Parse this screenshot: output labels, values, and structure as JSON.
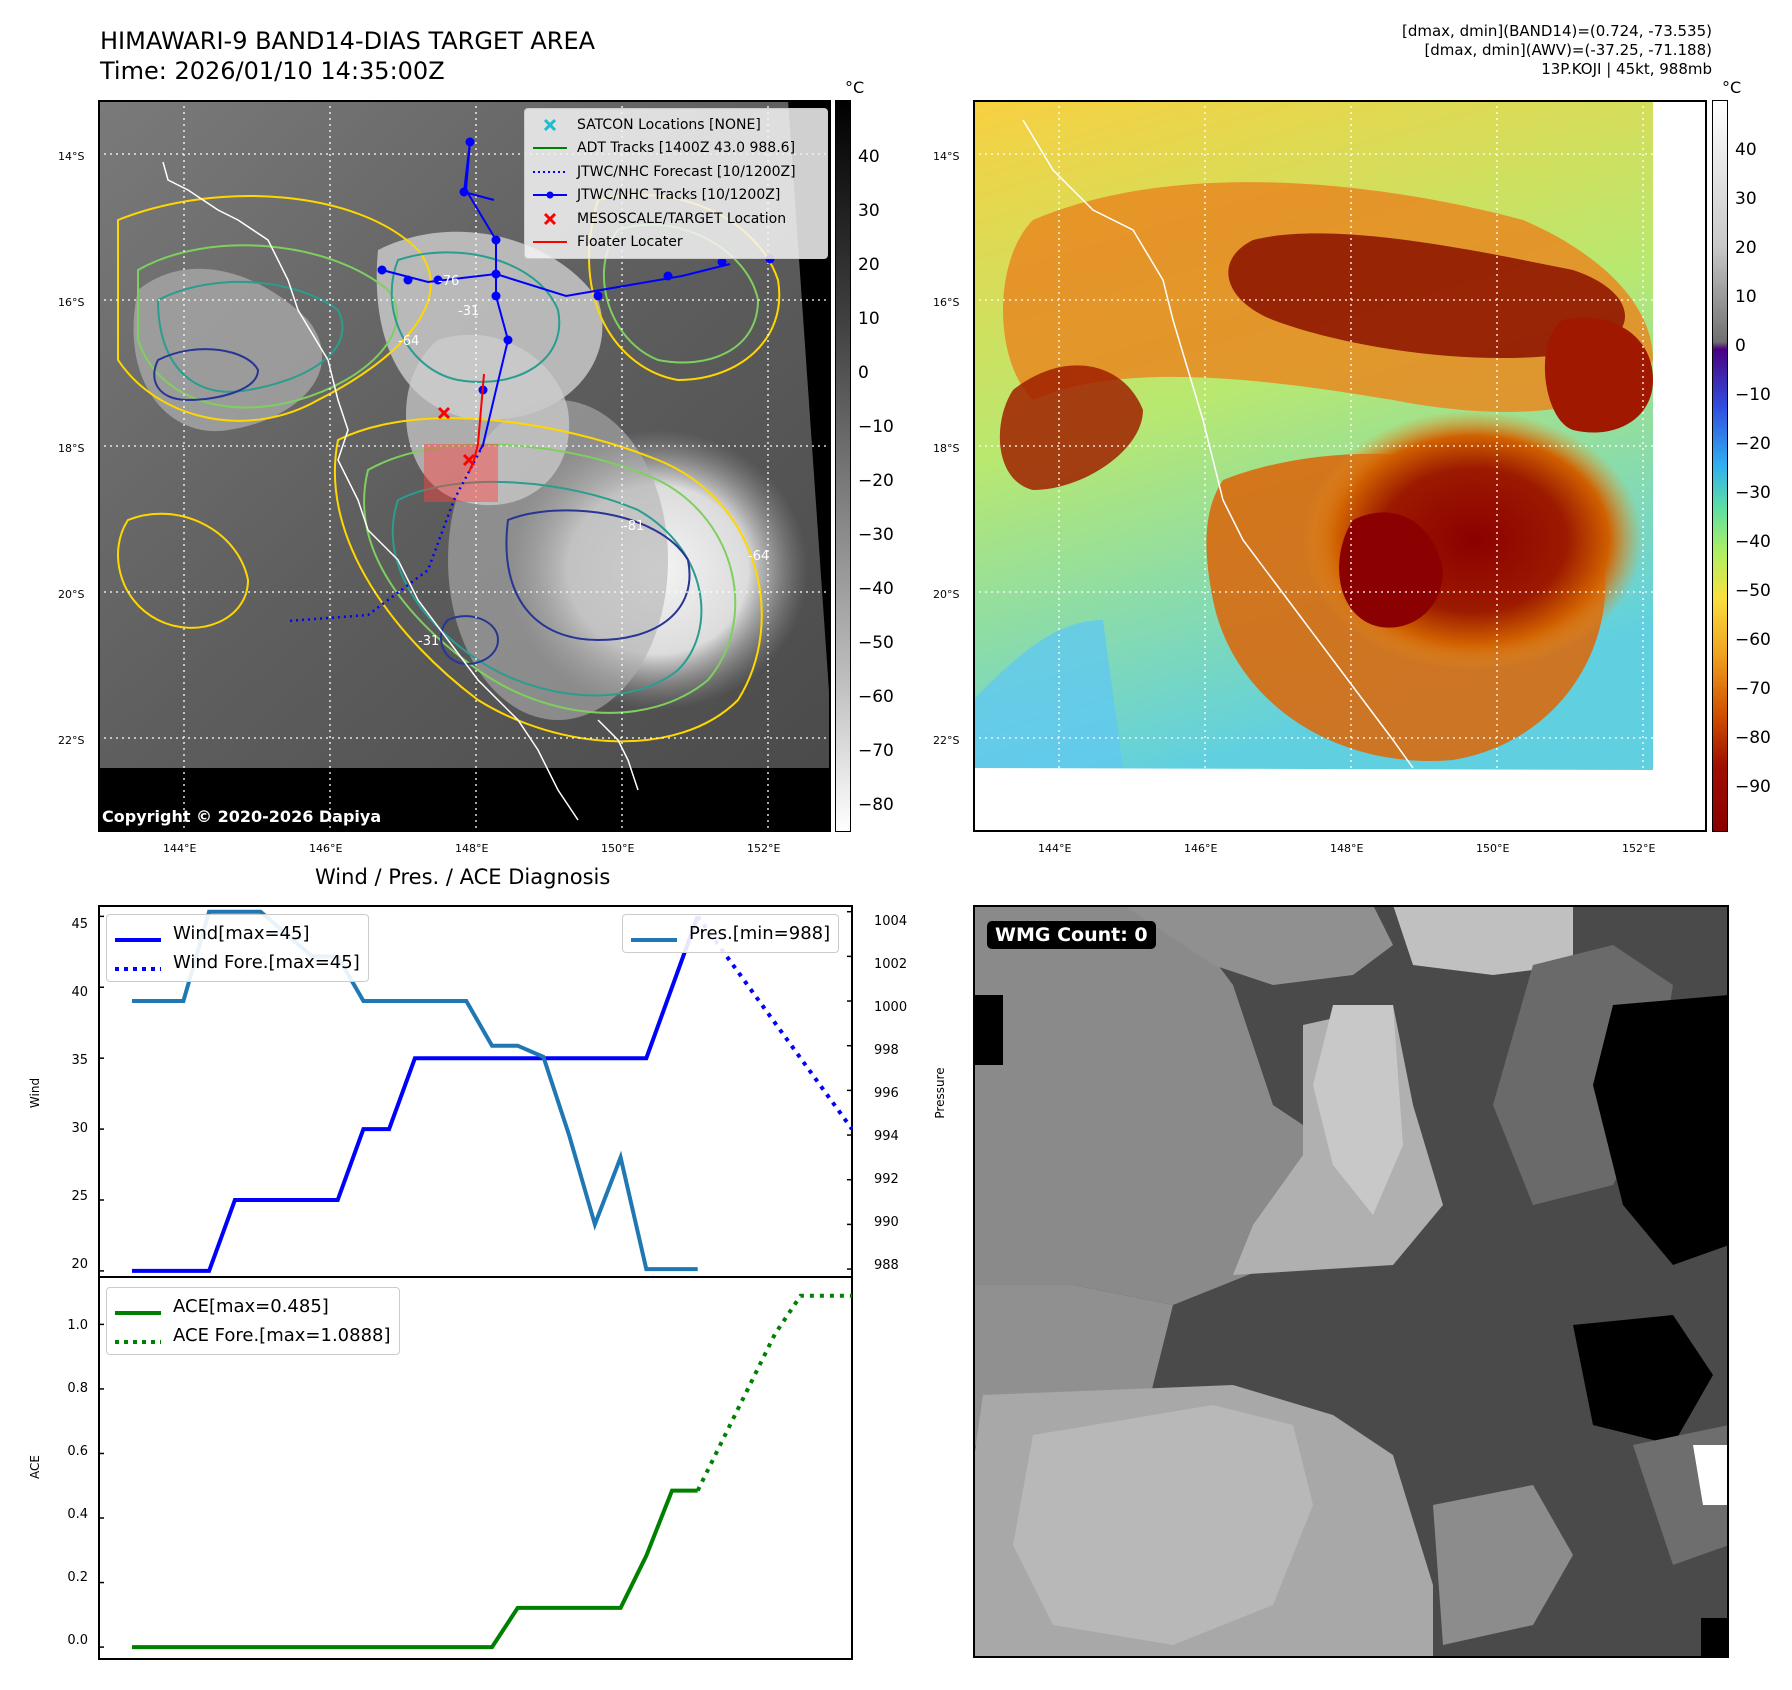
{
  "header": {
    "title_line1": "HIMAWARI-9 BAND14-DIAS TARGET AREA",
    "title_line2": "Time: 2026/01/10 14:35:00Z",
    "info_line1": "[dmax, dmin](BAND14)=(0.724, -73.535)",
    "info_line2": "[dmax, dmin](AWV)=(-37.25, -71.188)",
    "info_line3": "13P.KOJI | 45kt, 988mb"
  },
  "map": {
    "lat_labels": [
      "14°S",
      "16°S",
      "18°S",
      "20°S",
      "22°S"
    ],
    "lon_labels": [
      "144°E",
      "146°E",
      "148°E",
      "150°E",
      "152°E"
    ],
    "copyright": "Copyright © 2020-2026 Dapiya",
    "contour_labels": [
      "-31",
      "-64",
      "-76",
      "-81",
      "-64",
      "-31"
    ],
    "legend": [
      {
        "label": "SATCON Locations [NONE]",
        "color": "#17becf",
        "marker": "x"
      },
      {
        "label": "ADT Tracks [1400Z 43.0 988.6]",
        "color": "#008000",
        "marker": "line"
      },
      {
        "label": "JTWC/NHC Forecast [10/1200Z]",
        "color": "#0000ff",
        "marker": "dotted"
      },
      {
        "label": "JTWC/NHC Tracks [10/1200Z]",
        "color": "#0000ff",
        "marker": "line-dot"
      },
      {
        "label": "MESOSCALE/TARGET Location",
        "color": "#ff0000",
        "marker": "x"
      },
      {
        "label": "Floater Locater",
        "color": "#ff0000",
        "marker": "line"
      }
    ]
  },
  "colorbar_gray": {
    "unit": "°C",
    "ticks": [
      "40",
      "30",
      "20",
      "10",
      "0",
      "−10",
      "−20",
      "−30",
      "−40",
      "−50",
      "−60",
      "−70",
      "−80"
    ]
  },
  "colorbar_color": {
    "unit": "°C",
    "ticks": [
      "40",
      "30",
      "20",
      "10",
      "0",
      "−10",
      "−20",
      "−30",
      "−40",
      "−50",
      "−60",
      "−70",
      "−80",
      "−90"
    ]
  },
  "wmg": {
    "label": "WMG Count: 0"
  },
  "colors": {
    "wind": "#0000ff",
    "pres": "#1f77b4",
    "ace": "#008000",
    "track": "#0000ff",
    "mesoscale": "#ff0000"
  },
  "chart_data": [
    {
      "type": "line",
      "title": "Wind / Pres. / ACE Diagnosis",
      "ylabel": "Wind",
      "y2label": "Pressure",
      "ylim": [
        19.5,
        45.8
      ],
      "y2lim": [
        987.6,
        1004.3
      ],
      "yticks": [
        "45",
        "40",
        "35",
        "30",
        "25",
        "20"
      ],
      "y2ticks": [
        "1004",
        "1002",
        "1000",
        "998",
        "996",
        "994",
        "992",
        "990",
        "988"
      ],
      "legend_left": [
        "Wind[max=45]",
        "Wind Fore.[max=45]"
      ],
      "legend_right": [
        "Pres.[min=988]"
      ],
      "series": [
        {
          "name": "Wind[max=45]",
          "style": "solid",
          "x": [
            0,
            3,
            4,
            8,
            9,
            10,
            11,
            12,
            13,
            14,
            15,
            16,
            17,
            18,
            19,
            20,
            21,
            22
          ],
          "values": [
            20,
            20,
            25,
            25,
            30,
            30,
            35,
            35,
            35,
            35,
            35,
            35,
            35,
            35,
            35,
            35,
            40,
            45
          ]
        },
        {
          "name": "Wind Fore.[max=45]",
          "style": "dotted",
          "x": [
            22,
            28
          ],
          "values": [
            45,
            30
          ]
        },
        {
          "name": "Pres.[min=988]",
          "style": "solid",
          "axis": "right",
          "x": [
            0,
            2,
            3,
            4,
            5,
            6,
            7,
            8,
            9,
            10,
            11,
            12,
            13,
            14,
            15,
            16,
            17,
            18,
            19,
            20,
            21,
            22
          ],
          "values": [
            1000,
            1000,
            1004,
            1004,
            1004,
            1003,
            1002,
            1002,
            1000,
            1000,
            1000,
            1000,
            1000,
            998,
            998,
            997.5,
            994,
            990,
            993,
            988,
            988,
            988
          ]
        }
      ]
    },
    {
      "type": "line",
      "ylabel": "ACE",
      "ylim": [
        -0.04,
        1.15
      ],
      "yticks": [
        "1.0",
        "0.8",
        "0.6",
        "0.4",
        "0.2",
        "0.0"
      ],
      "legend": [
        "ACE[max=0.485]",
        "ACE Fore.[max=1.0888]"
      ],
      "series": [
        {
          "name": "ACE[max=0.485]",
          "style": "solid",
          "x": [
            0,
            14,
            15,
            19,
            20,
            21,
            22
          ],
          "values": [
            0,
            0,
            0.1215,
            0.1215,
            0.283,
            0.485,
            0.485
          ]
        },
        {
          "name": "ACE Fore.[max=1.0888]",
          "style": "dotted",
          "x": [
            22,
            25,
            26,
            28
          ],
          "values": [
            0.485,
            0.97,
            1.0888,
            1.0888
          ]
        }
      ]
    }
  ]
}
